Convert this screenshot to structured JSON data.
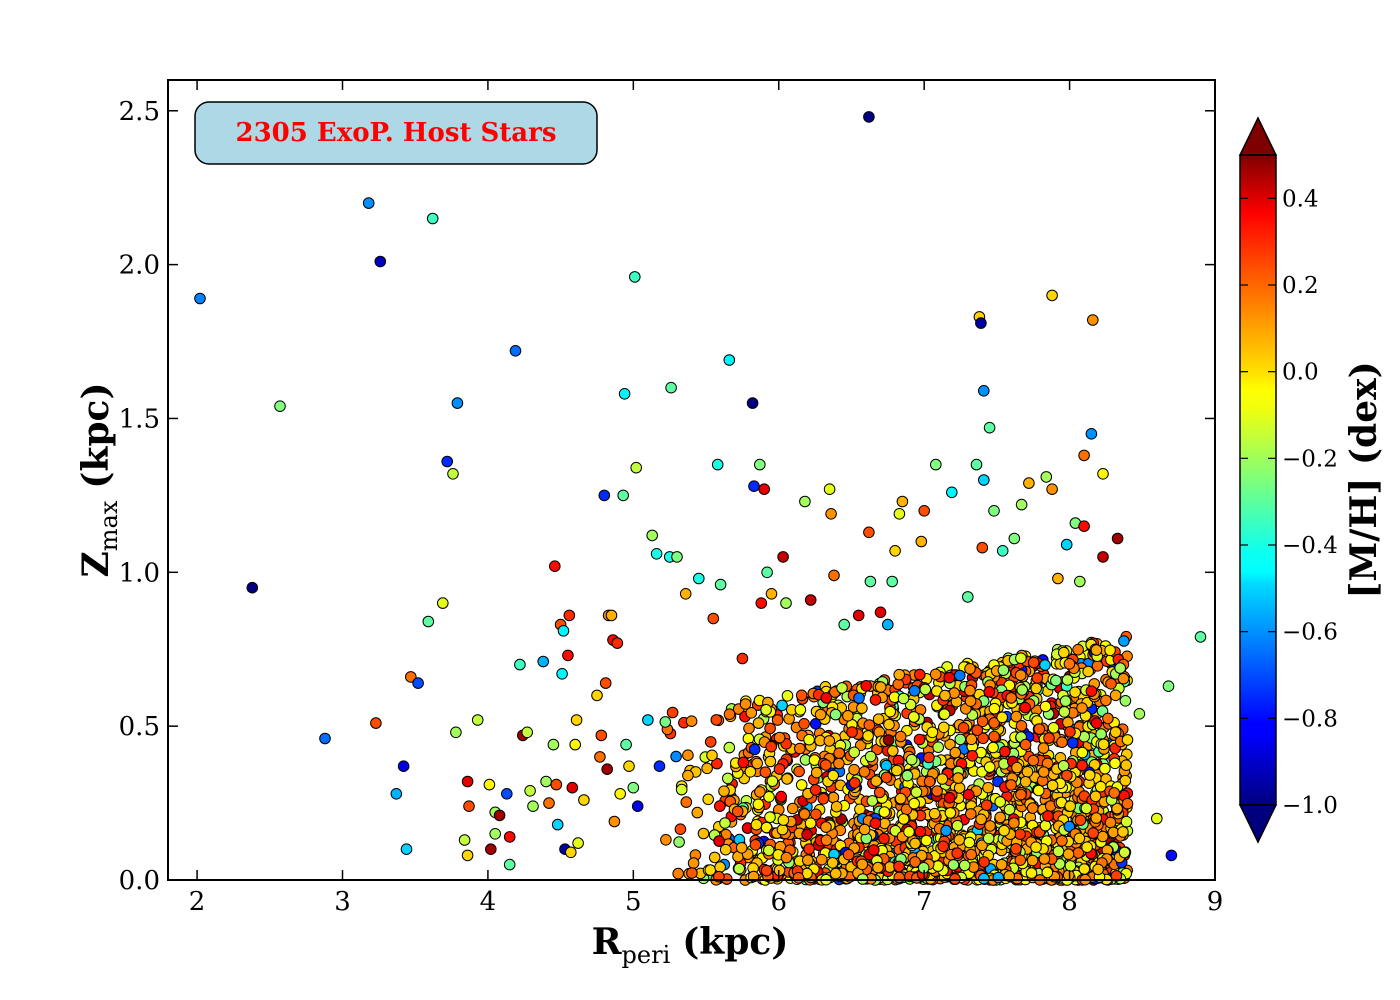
{
  "chart_data": {
    "type": "scatter",
    "title": "",
    "annotation": {
      "text": "2305 ExoP. Host Stars",
      "color": "#ff0000",
      "box_color": "#add8e6"
    },
    "xlabel": {
      "main": "R",
      "sub": "peri",
      "unit": "(kpc)"
    },
    "ylabel": {
      "main": "Z",
      "sub": "max",
      "unit": "(kpc)"
    },
    "colorbar_label": "[M/H] (dex)",
    "xlim": [
      1.8,
      9.0
    ],
    "ylim": [
      0.0,
      2.6
    ],
    "x_ticks": [
      2,
      3,
      4,
      5,
      6,
      7,
      8,
      9
    ],
    "x_tick_labels": [
      "2",
      "3",
      "4",
      "5",
      "6",
      "7",
      "8",
      "9"
    ],
    "y_ticks": [
      0.0,
      0.5,
      1.0,
      1.5,
      2.0,
      2.5
    ],
    "y_tick_labels": [
      "0.0",
      "0.5",
      "1.0",
      "1.5",
      "2.0",
      "2.5"
    ],
    "color_range": [
      -1.0,
      0.5
    ],
    "colormap": "jet",
    "colorbar_extend": "both",
    "colorbar_ticks": [
      -1.0,
      -0.8,
      -0.6,
      -0.4,
      -0.2,
      0.0,
      0.2,
      0.4
    ],
    "colorbar_tick_labels": [
      "−1.0",
      "−0.8",
      "−0.6",
      "−0.4",
      "−0.2",
      "0.0",
      "0.2",
      "0.4"
    ],
    "grid": false,
    "dense_region": {
      "n_points": 2200,
      "x_range": [
        5.2,
        8.4
      ],
      "y_max": 0.72,
      "metallicity_mean": 0.05,
      "metallicity_spread": 0.2
    },
    "points": [
      [
        2.02,
        1.89,
        -0.62
      ],
      [
        2.38,
        0.95,
        -1.0
      ],
      [
        2.57,
        1.54,
        -0.25
      ],
      [
        2.88,
        0.46,
        -0.65
      ],
      [
        3.18,
        2.2,
        -0.6
      ],
      [
        3.26,
        2.01,
        -0.9
      ],
      [
        3.23,
        0.51,
        0.2
      ],
      [
        3.37,
        0.28,
        -0.55
      ],
      [
        3.42,
        0.37,
        -0.85
      ],
      [
        3.44,
        0.1,
        -0.5
      ],
      [
        3.47,
        0.66,
        0.15
      ],
      [
        3.52,
        0.64,
        -0.7
      ],
      [
        3.62,
        2.15,
        -0.35
      ],
      [
        3.72,
        1.36,
        -0.75
      ],
      [
        3.76,
        1.32,
        -0.15
      ],
      [
        3.79,
        1.55,
        -0.6
      ],
      [
        3.59,
        0.84,
        -0.3
      ],
      [
        3.69,
        0.9,
        -0.1
      ],
      [
        3.78,
        0.48,
        -0.2
      ],
      [
        3.84,
        0.13,
        -0.15
      ],
      [
        3.86,
        0.08,
        0.0
      ],
      [
        3.86,
        0.32,
        0.35
      ],
      [
        3.87,
        0.24,
        0.2
      ],
      [
        3.93,
        0.52,
        -0.15
      ],
      [
        4.01,
        0.31,
        -0.05
      ],
      [
        4.02,
        0.1,
        0.45
      ],
      [
        4.05,
        0.15,
        -0.2
      ],
      [
        4.05,
        0.22,
        -0.2
      ],
      [
        4.08,
        0.21,
        0.45
      ],
      [
        4.13,
        0.28,
        -0.7
      ],
      [
        4.15,
        0.14,
        0.3
      ],
      [
        4.15,
        0.05,
        -0.3
      ],
      [
        4.19,
        1.72,
        -0.65
      ],
      [
        4.22,
        0.7,
        -0.35
      ],
      [
        4.24,
        0.47,
        0.45
      ],
      [
        4.27,
        0.48,
        -0.15
      ],
      [
        4.29,
        0.29,
        -0.15
      ],
      [
        4.31,
        0.24,
        -0.2
      ],
      [
        4.38,
        0.71,
        -0.55
      ],
      [
        4.4,
        0.32,
        -0.2
      ],
      [
        4.42,
        0.25,
        0.15
      ],
      [
        4.45,
        0.44,
        -0.2
      ],
      [
        4.46,
        1.02,
        0.3
      ],
      [
        4.47,
        0.31,
        0.2
      ],
      [
        4.48,
        0.18,
        -0.5
      ],
      [
        4.5,
        0.83,
        0.2
      ],
      [
        4.51,
        0.67,
        -0.45
      ],
      [
        4.52,
        0.81,
        -0.45
      ],
      [
        4.53,
        0.1,
        -0.95
      ],
      [
        4.55,
        0.73,
        0.3
      ],
      [
        4.56,
        0.86,
        0.25
      ],
      [
        4.57,
        0.09,
        0.0
      ],
      [
        4.58,
        0.3,
        0.35
      ],
      [
        4.6,
        0.44,
        -0.05
      ],
      [
        4.61,
        0.52,
        0.0
      ],
      [
        4.62,
        0.12,
        -0.1
      ],
      [
        4.66,
        0.26,
        0.0
      ],
      [
        4.75,
        0.6,
        0.0
      ],
      [
        4.77,
        0.4,
        0.15
      ],
      [
        4.78,
        0.47,
        0.2
      ],
      [
        4.8,
        1.25,
        -0.75
      ],
      [
        4.81,
        0.64,
        0.2
      ],
      [
        4.82,
        0.36,
        0.45
      ],
      [
        4.83,
        0.86,
        0.1
      ],
      [
        4.85,
        0.86,
        0.05
      ],
      [
        4.86,
        0.78,
        0.3
      ],
      [
        4.87,
        0.19,
        0.1
      ],
      [
        4.89,
        0.77,
        0.25
      ],
      [
        4.91,
        0.28,
        -0.05
      ],
      [
        4.93,
        1.25,
        -0.3
      ],
      [
        4.94,
        1.58,
        -0.45
      ],
      [
        4.95,
        0.44,
        -0.3
      ],
      [
        4.97,
        0.37,
        0.0
      ],
      [
        5.0,
        0.3,
        -0.25
      ],
      [
        5.01,
        1.96,
        -0.35
      ],
      [
        5.02,
        1.34,
        -0.15
      ],
      [
        5.03,
        0.24,
        -0.85
      ],
      [
        5.1,
        0.52,
        -0.5
      ],
      [
        5.13,
        1.12,
        -0.2
      ],
      [
        5.16,
        1.06,
        -0.4
      ],
      [
        5.18,
        0.37,
        -0.75
      ],
      [
        5.25,
        1.05,
        -0.4
      ],
      [
        5.26,
        1.6,
        -0.3
      ],
      [
        5.3,
        1.05,
        -0.25
      ],
      [
        5.36,
        0.93,
        0.05
      ],
      [
        5.45,
        0.98,
        -0.4
      ],
      [
        5.55,
        0.85,
        0.2
      ],
      [
        5.58,
        1.35,
        -0.4
      ],
      [
        5.6,
        0.96,
        -0.3
      ],
      [
        5.66,
        1.69,
        -0.45
      ],
      [
        5.75,
        0.72,
        0.25
      ],
      [
        5.82,
        1.55,
        -1.0
      ],
      [
        5.83,
        1.28,
        -0.75
      ],
      [
        5.87,
        1.35,
        -0.25
      ],
      [
        5.88,
        0.9,
        0.3
      ],
      [
        5.9,
        1.27,
        0.35
      ],
      [
        5.92,
        1.0,
        -0.3
      ],
      [
        5.95,
        0.93,
        0.05
      ],
      [
        6.03,
        1.05,
        0.4
      ],
      [
        6.05,
        0.9,
        -0.2
      ],
      [
        6.18,
        1.23,
        -0.2
      ],
      [
        6.22,
        0.91,
        0.4
      ],
      [
        6.35,
        1.27,
        -0.1
      ],
      [
        6.36,
        1.19,
        0.1
      ],
      [
        6.38,
        0.99,
        0.15
      ],
      [
        6.45,
        0.83,
        -0.3
      ],
      [
        6.55,
        0.86,
        0.35
      ],
      [
        6.62,
        2.48,
        -1.0
      ],
      [
        6.62,
        1.13,
        0.2
      ],
      [
        6.63,
        0.97,
        -0.3
      ],
      [
        6.7,
        0.87,
        0.35
      ],
      [
        6.75,
        0.83,
        -0.55
      ],
      [
        6.78,
        0.97,
        -0.3
      ],
      [
        6.8,
        1.07,
        0.0
      ],
      [
        6.83,
        1.19,
        -0.1
      ],
      [
        6.85,
        1.23,
        0.05
      ],
      [
        6.98,
        1.1,
        0.05
      ],
      [
        7.0,
        1.2,
        0.2
      ],
      [
        7.08,
        1.35,
        -0.25
      ],
      [
        7.19,
        1.26,
        -0.45
      ],
      [
        7.3,
        0.92,
        -0.3
      ],
      [
        7.36,
        1.35,
        -0.3
      ],
      [
        7.38,
        1.83,
        0.0
      ],
      [
        7.39,
        1.81,
        -0.95
      ],
      [
        7.4,
        1.08,
        0.2
      ],
      [
        7.41,
        1.59,
        -0.6
      ],
      [
        7.41,
        1.3,
        -0.5
      ],
      [
        7.45,
        1.47,
        -0.3
      ],
      [
        7.48,
        1.2,
        -0.25
      ],
      [
        7.54,
        1.07,
        -0.35
      ],
      [
        7.62,
        1.11,
        -0.25
      ],
      [
        7.67,
        1.22,
        -0.2
      ],
      [
        7.72,
        1.29,
        0.05
      ],
      [
        7.84,
        1.31,
        -0.2
      ],
      [
        7.88,
        1.9,
        0.0
      ],
      [
        7.88,
        1.27,
        0.1
      ],
      [
        7.92,
        0.98,
        0.05
      ],
      [
        7.98,
        1.09,
        -0.5
      ],
      [
        8.04,
        1.16,
        -0.25
      ],
      [
        8.07,
        0.97,
        -0.2
      ],
      [
        8.1,
        1.38,
        0.15
      ],
      [
        8.1,
        1.15,
        0.3
      ],
      [
        8.15,
        1.45,
        -0.6
      ],
      [
        8.16,
        1.82,
        0.1
      ],
      [
        8.23,
        1.32,
        -0.05
      ],
      [
        8.23,
        1.05,
        0.4
      ],
      [
        8.33,
        1.11,
        0.45
      ],
      [
        8.48,
        0.54,
        -0.2
      ],
      [
        8.68,
        0.63,
        -0.25
      ],
      [
        8.7,
        0.08,
        -0.8
      ],
      [
        8.9,
        0.79,
        -0.3
      ],
      [
        8.6,
        0.2,
        -0.1
      ]
    ]
  }
}
